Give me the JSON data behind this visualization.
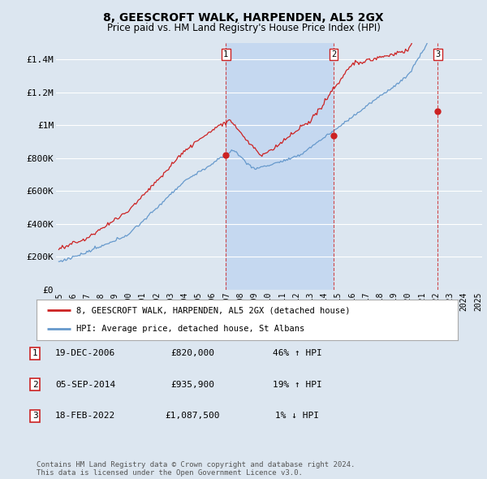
{
  "title": "8, GEESCROFT WALK, HARPENDEN, AL5 2GX",
  "subtitle": "Price paid vs. HM Land Registry's House Price Index (HPI)",
  "ylim": [
    0,
    1500000
  ],
  "yticks": [
    0,
    200000,
    400000,
    600000,
    800000,
    1000000,
    1200000,
    1400000
  ],
  "ytick_labels": [
    "£0",
    "£200K",
    "£400K",
    "£600K",
    "£800K",
    "£1M",
    "£1.2M",
    "£1.4M"
  ],
  "red_line_color": "#cc2222",
  "blue_line_color": "#6699cc",
  "background_color": "#dce6f0",
  "plot_bg_color": "#dce6f0",
  "shade_color": "#c5d8f0",
  "grid_color": "#ffffff",
  "sale_year_floats": [
    2006.96,
    2014.67,
    2022.13
  ],
  "sale_prices": [
    820000,
    935900,
    1087500
  ],
  "sale_labels": [
    "1",
    "2",
    "3"
  ],
  "vline_color": "#cc2222",
  "legend_entries": [
    "8, GEESCROFT WALK, HARPENDEN, AL5 2GX (detached house)",
    "HPI: Average price, detached house, St Albans"
  ],
  "table_data": [
    [
      "1",
      "19-DEC-2006",
      "£820,000",
      "46% ↑ HPI"
    ],
    [
      "2",
      "05-SEP-2014",
      "£935,900",
      "19% ↑ HPI"
    ],
    [
      "3",
      "18-FEB-2022",
      "£1,087,500",
      "1% ↓ HPI"
    ]
  ],
  "footer_text": "Contains HM Land Registry data © Crown copyright and database right 2024.\nThis data is licensed under the Open Government Licence v3.0.",
  "title_fontsize": 10,
  "subtitle_fontsize": 8.5,
  "axis_fontsize": 8
}
